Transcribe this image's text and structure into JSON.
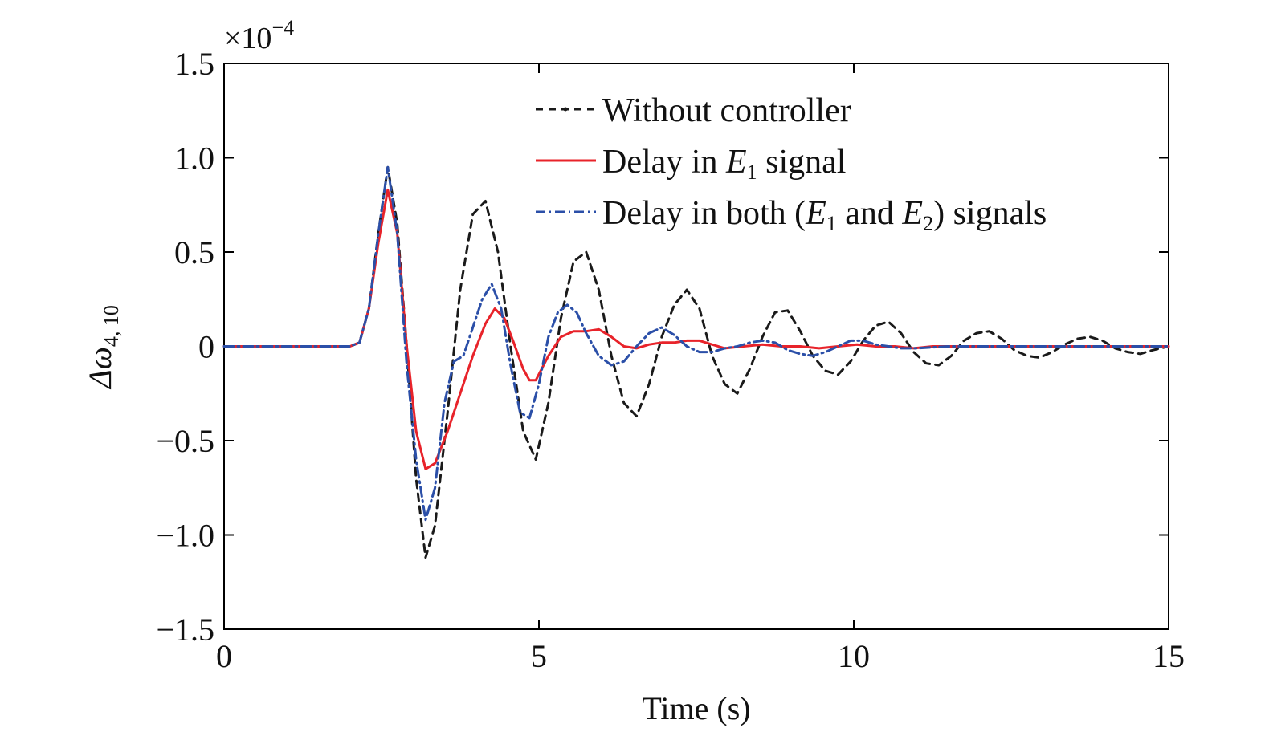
{
  "chart_data": {
    "type": "line",
    "title": "",
    "xlabel": "Time (s)",
    "ylabel_main": "Δω",
    "ylabel_sub": "4, 10",
    "exponent_prefix": "×10",
    "exponent_power": "−4",
    "xlim": [
      0,
      15
    ],
    "ylim": [
      -1.5,
      1.5
    ],
    "xticks": [
      0,
      5,
      10,
      15
    ],
    "xtick_labels": [
      "0",
      "5",
      "10",
      "15"
    ],
    "yticks": [
      -1.5,
      -1.0,
      -0.5,
      0,
      0.5,
      1.0,
      1.5
    ],
    "ytick_labels": [
      "−1.5",
      "−1.0",
      "−0.5",
      "0",
      "0.5",
      "1.0",
      "1.5"
    ],
    "grid": false,
    "legend_position": "top-right",
    "legend": {
      "without": "Without controller",
      "e1_a": "Delay in ",
      "e1_E": "E",
      "e1_sub": "1",
      "e1_b": " signal",
      "both_a": "Delay in both (",
      "both_E1": "E",
      "both_sub1": "1",
      "both_mid": " and ",
      "both_E2": "E",
      "both_sub2": "2",
      "both_b": ") signals"
    },
    "series": [
      {
        "name": "Without controller",
        "color": "#1a1a1a",
        "dash": "9,7",
        "x": [
          0,
          2.0,
          2.15,
          2.3,
          2.45,
          2.6,
          2.75,
          2.9,
          3.05,
          3.2,
          3.35,
          3.55,
          3.75,
          3.95,
          4.15,
          4.35,
          4.55,
          4.75,
          4.95,
          5.15,
          5.35,
          5.55,
          5.75,
          5.95,
          6.15,
          6.35,
          6.55,
          6.75,
          6.95,
          7.15,
          7.35,
          7.55,
          7.75,
          7.95,
          8.15,
          8.35,
          8.55,
          8.75,
          8.95,
          9.15,
          9.35,
          9.55,
          9.75,
          9.95,
          10.15,
          10.35,
          10.55,
          10.75,
          10.95,
          11.15,
          11.35,
          11.55,
          11.75,
          11.95,
          12.15,
          12.35,
          12.55,
          12.75,
          12.95,
          13.15,
          13.35,
          13.55,
          13.75,
          13.95,
          14.15,
          14.35,
          14.55,
          14.75,
          15.0
        ],
        "y": [
          0,
          0,
          0.02,
          0.2,
          0.6,
          0.95,
          0.65,
          0.0,
          -0.7,
          -1.12,
          -0.95,
          -0.35,
          0.3,
          0.7,
          0.77,
          0.5,
          0.0,
          -0.45,
          -0.6,
          -0.3,
          0.15,
          0.45,
          0.5,
          0.3,
          -0.05,
          -0.3,
          -0.37,
          -0.2,
          0.05,
          0.22,
          0.3,
          0.2,
          -0.05,
          -0.2,
          -0.25,
          -0.12,
          0.05,
          0.18,
          0.19,
          0.08,
          -0.05,
          -0.13,
          -0.15,
          -0.08,
          0.03,
          0.11,
          0.13,
          0.07,
          -0.03,
          -0.09,
          -0.1,
          -0.05,
          0.03,
          0.07,
          0.08,
          0.04,
          -0.02,
          -0.05,
          -0.06,
          -0.03,
          0.01,
          0.04,
          0.05,
          0.03,
          -0.01,
          -0.03,
          -0.04,
          -0.02,
          0.0
        ]
      },
      {
        "name": "Delay in E1 signal",
        "color": "#e8232a",
        "dash": "",
        "x": [
          0,
          2.0,
          2.15,
          2.3,
          2.45,
          2.6,
          2.75,
          2.9,
          3.05,
          3.2,
          3.35,
          3.55,
          3.75,
          3.95,
          4.15,
          4.3,
          4.45,
          4.6,
          4.75,
          4.85,
          4.95,
          5.15,
          5.35,
          5.55,
          5.75,
          5.95,
          6.15,
          6.35,
          6.55,
          6.75,
          6.95,
          7.15,
          7.35,
          7.55,
          7.75,
          7.95,
          8.25,
          8.55,
          8.85,
          9.15,
          9.45,
          9.75,
          10.05,
          10.35,
          10.65,
          10.95,
          11.25,
          11.55,
          11.85,
          12.5,
          13.5,
          14.5,
          15.0
        ],
        "y": [
          0,
          0,
          0.02,
          0.2,
          0.55,
          0.83,
          0.6,
          0.0,
          -0.45,
          -0.65,
          -0.62,
          -0.45,
          -0.25,
          -0.05,
          0.12,
          0.2,
          0.15,
          0.02,
          -0.12,
          -0.18,
          -0.18,
          -0.05,
          0.05,
          0.08,
          0.08,
          0.09,
          0.05,
          0.0,
          -0.01,
          0.01,
          0.02,
          0.02,
          0.03,
          0.03,
          0.01,
          -0.01,
          0.0,
          0.01,
          0.0,
          0.0,
          -0.01,
          0.0,
          0.01,
          0.0,
          0.0,
          -0.01,
          0.0,
          0.0,
          0.0,
          0.0,
          0.0,
          0.0,
          0.0
        ]
      },
      {
        "name": "Delay in both (E1 and E2) signals",
        "color": "#2b4fa8",
        "dash": "12,5,2,5",
        "x": [
          0,
          2.0,
          2.15,
          2.3,
          2.45,
          2.6,
          2.75,
          2.9,
          3.05,
          3.2,
          3.35,
          3.5,
          3.65,
          3.8,
          3.95,
          4.1,
          4.25,
          4.4,
          4.55,
          4.7,
          4.85,
          5.0,
          5.15,
          5.3,
          5.45,
          5.6,
          5.75,
          5.95,
          6.15,
          6.35,
          6.55,
          6.75,
          6.95,
          7.15,
          7.35,
          7.55,
          7.75,
          7.95,
          8.15,
          8.35,
          8.55,
          8.75,
          8.95,
          9.15,
          9.35,
          9.55,
          9.75,
          9.95,
          10.15,
          10.35,
          10.55,
          10.75,
          11.0,
          11.5,
          12.0,
          12.5,
          13.0,
          13.5,
          14.0,
          14.5,
          15.0
        ],
        "y": [
          0,
          0,
          0.02,
          0.2,
          0.6,
          0.95,
          0.6,
          -0.1,
          -0.6,
          -0.92,
          -0.75,
          -0.3,
          -0.08,
          -0.05,
          0.1,
          0.25,
          0.33,
          0.2,
          -0.1,
          -0.35,
          -0.38,
          -0.2,
          0.05,
          0.18,
          0.22,
          0.18,
          0.07,
          -0.05,
          -0.1,
          -0.08,
          0.0,
          0.07,
          0.1,
          0.06,
          0.0,
          -0.03,
          -0.03,
          -0.01,
          0.0,
          0.02,
          0.03,
          0.02,
          -0.02,
          -0.04,
          -0.05,
          -0.03,
          0.0,
          0.03,
          0.03,
          0.01,
          0.0,
          -0.01,
          -0.01,
          0.0,
          0.0,
          0.0,
          0.0,
          0.0,
          0.0,
          0.0,
          0.0
        ]
      }
    ]
  }
}
